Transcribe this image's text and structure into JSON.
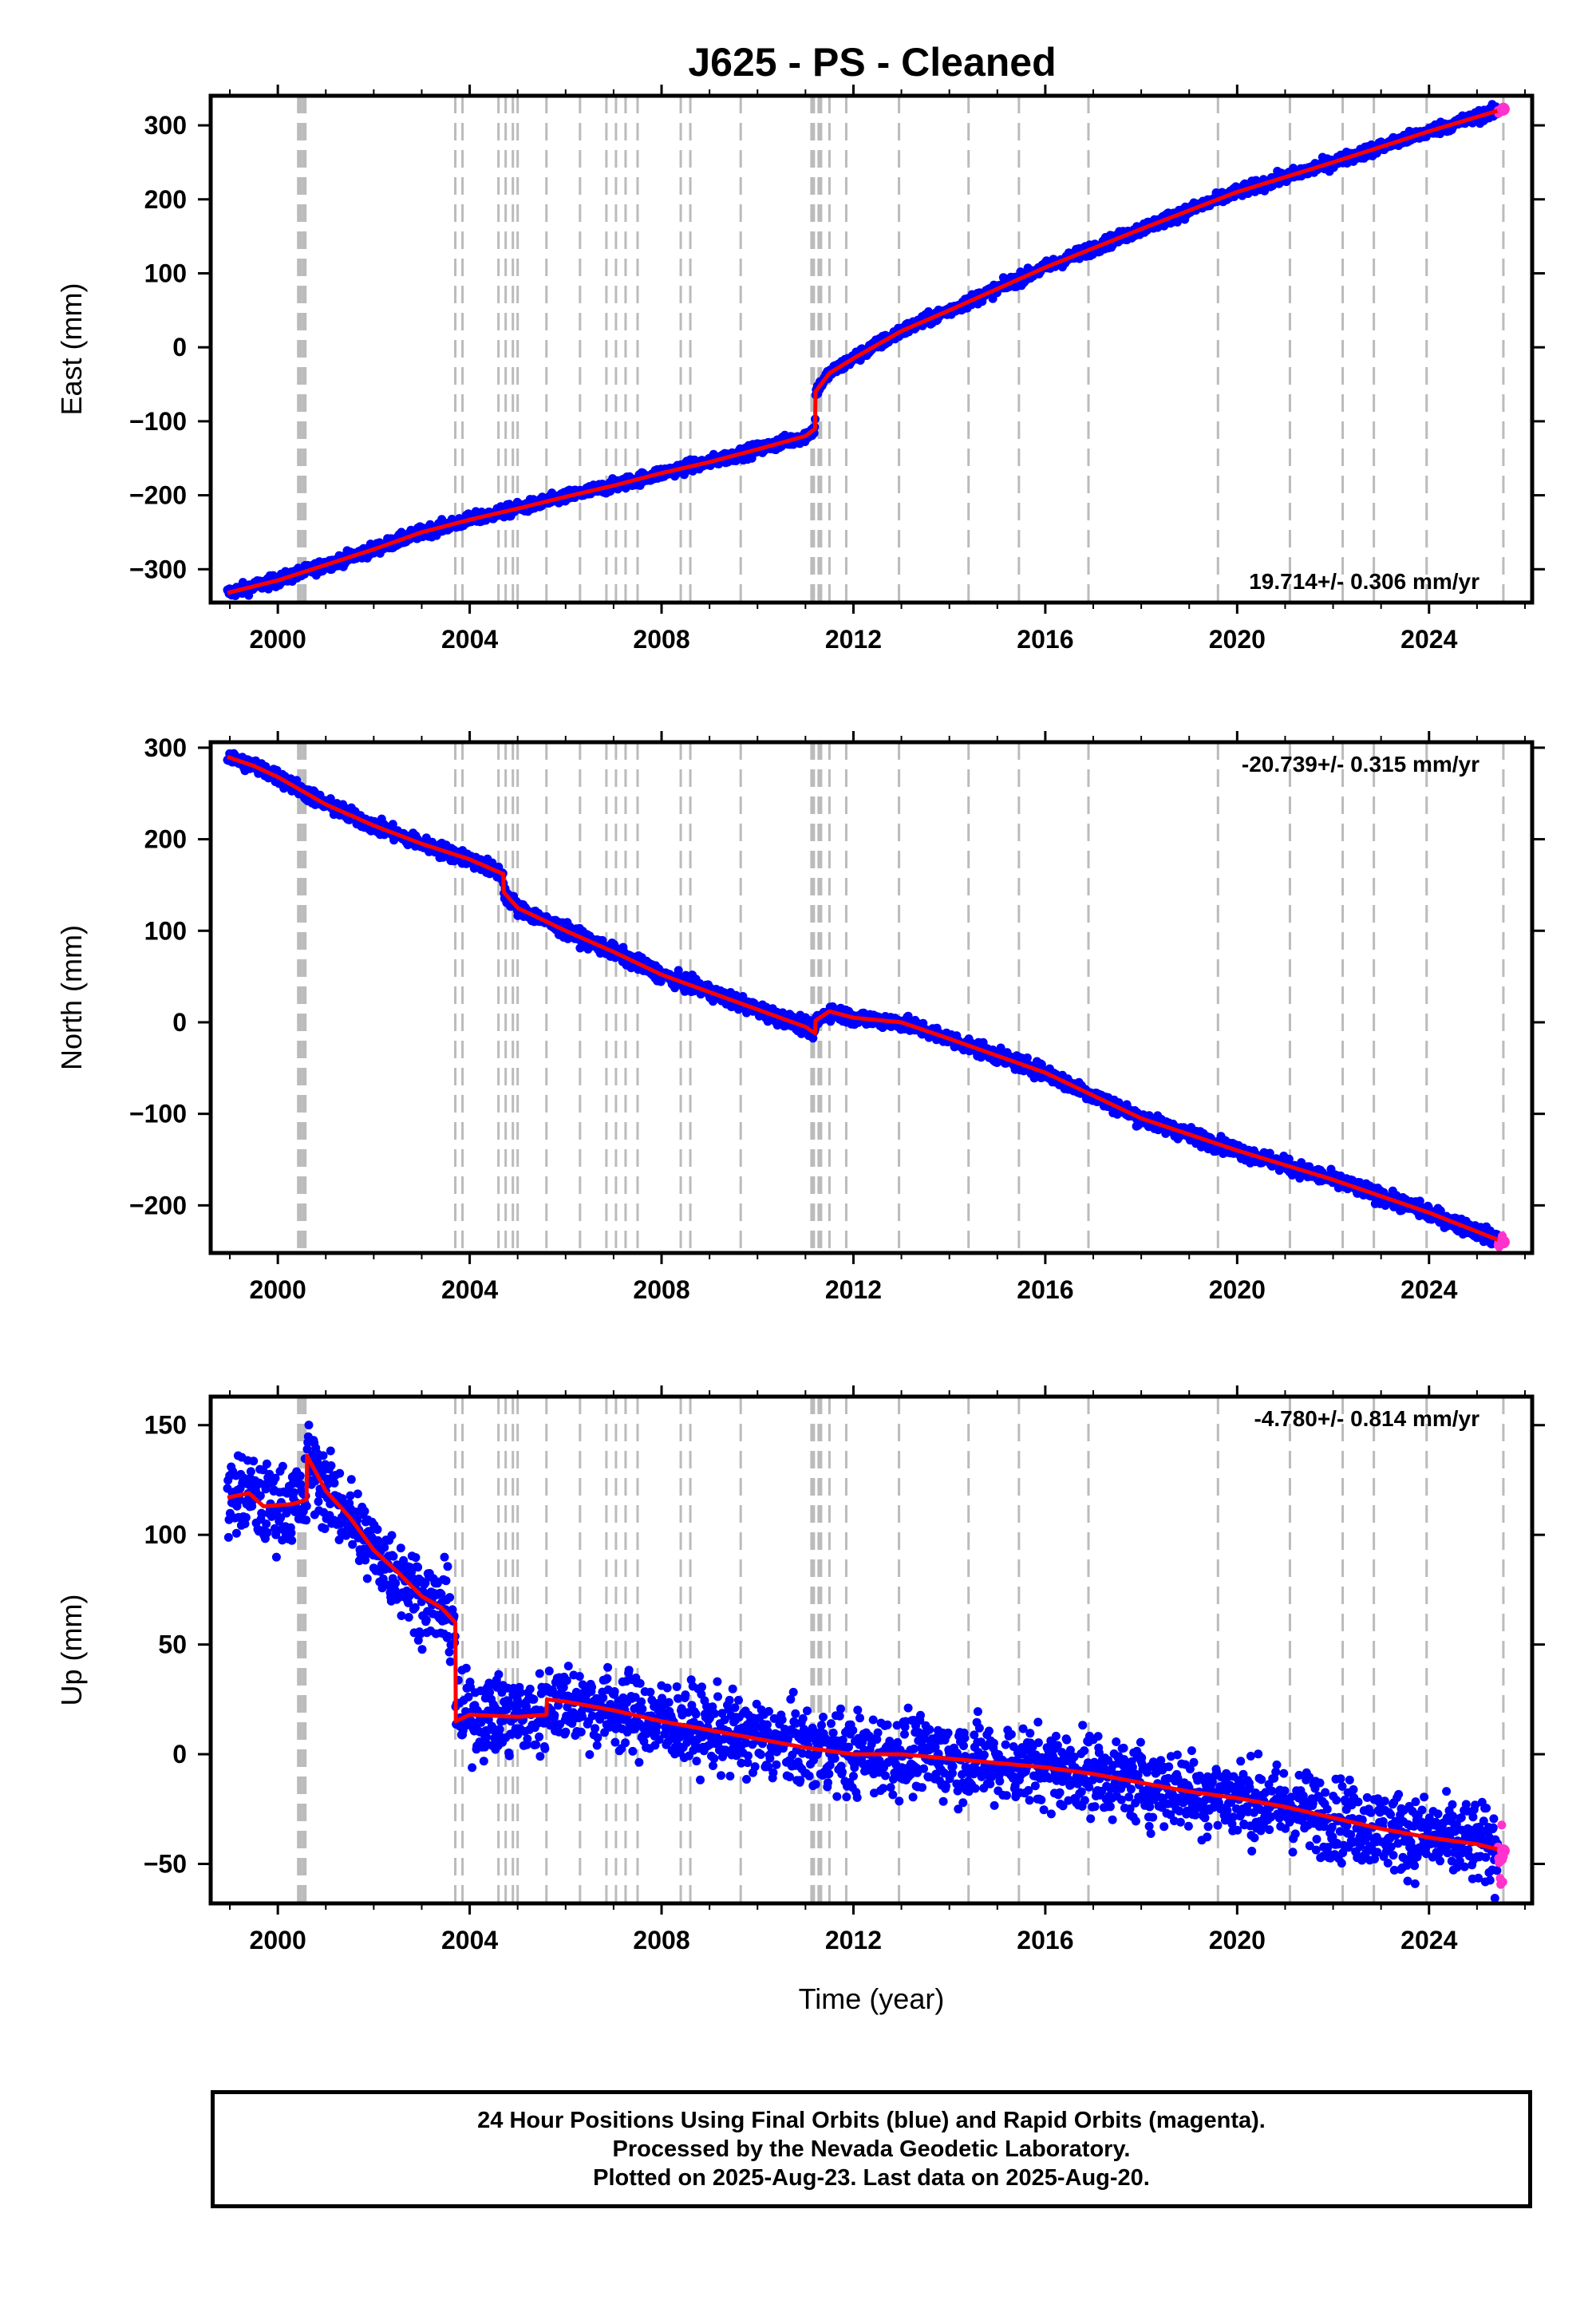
{
  "title": "J625  - PS - Cleaned",
  "footer": {
    "line1": "24 Hour Positions Using Final Orbits (blue) and Rapid Orbits (magenta).",
    "line2": "Processed by the Nevada Geodetic Laboratory.",
    "line3": "Plotted on 2025-Aug-23. Last data on 2025-Aug-20."
  },
  "colors": {
    "final_orbits": "#0000ff",
    "rapid_orbits": "#ff33cc",
    "model": "#ff0000",
    "event_lines": "#bbbbbb"
  },
  "chart_data": [
    {
      "type": "scatter",
      "name": "east",
      "ylabel": "East (mm)",
      "xlabel": "",
      "rate_text": "19.714+/- 0.306 mm/yr",
      "rate_position": "bottom-right",
      "xlim": [
        1998.6,
        2026.15
      ],
      "ylim": [
        -345,
        340
      ],
      "x_ticks": [
        2000,
        2004,
        2008,
        2012,
        2016,
        2020,
        2024
      ],
      "x_tick_labels": [
        "2000",
        "2004",
        "2008",
        "2012",
        "2016",
        "2020",
        "2024"
      ],
      "y_ticks": [
        -300,
        -200,
        -100,
        0,
        100,
        200,
        300
      ],
      "y_tick_labels": [
        "−300",
        "−200",
        "−100",
        "0",
        "100",
        "200",
        "300"
      ],
      "noise_mm": 4,
      "series": [
        {
          "name": "model",
          "x": [
            1998.95,
            2000.0,
            2002.0,
            2003.0,
            2004.0,
            2005.0,
            2006.0,
            2007.0,
            2008.0,
            2009.0,
            2010.0,
            2011.0,
            2011.2,
            2011.21,
            2011.5,
            2012.0,
            2013.0,
            2014.0,
            2016.0,
            2018.0,
            2020.0,
            2022.0,
            2024.0,
            2025.55
          ],
          "y": [
            -332,
            -315,
            -273,
            -250,
            -233,
            -218,
            -202,
            -187,
            -170,
            -155,
            -138,
            -120,
            -110,
            -60,
            -35,
            -15,
            22,
            50,
            108,
            160,
            210,
            250,
            292,
            322
          ]
        }
      ]
    },
    {
      "type": "scatter",
      "name": "north",
      "ylabel": "North (mm)",
      "xlabel": "",
      "rate_text": "-20.739+/- 0.315 mm/yr",
      "rate_position": "top-right",
      "xlim": [
        1998.6,
        2026.15
      ],
      "ylim": [
        -252,
        306
      ],
      "x_ticks": [
        2000,
        2004,
        2008,
        2012,
        2016,
        2020,
        2024
      ],
      "x_tick_labels": [
        "2000",
        "2004",
        "2008",
        "2012",
        "2016",
        "2020",
        "2024"
      ],
      "y_ticks": [
        -200,
        -100,
        0,
        100,
        200,
        300
      ],
      "y_tick_labels": [
        "−200",
        "−100",
        "0",
        "100",
        "200",
        "300"
      ],
      "noise_mm": 4,
      "series": [
        {
          "name": "model",
          "x": [
            1998.95,
            1999.5,
            2000.0,
            2001.0,
            2002.0,
            2003.0,
            2004.0,
            2004.7,
            2004.71,
            2005.0,
            2006.0,
            2007.0,
            2008.0,
            2009.0,
            2010.0,
            2011.0,
            2011.2,
            2011.21,
            2011.5,
            2012.0,
            2013.0,
            2014.0,
            2016.0,
            2018.0,
            2020.0,
            2022.0,
            2024.0,
            2025.55
          ],
          "y": [
            290,
            280,
            268,
            238,
            215,
            195,
            178,
            162,
            142,
            125,
            100,
            77,
            52,
            33,
            14,
            -5,
            -12,
            2,
            12,
            5,
            0,
            -18,
            -55,
            -105,
            -140,
            -172,
            -208,
            -240
          ]
        }
      ]
    },
    {
      "type": "scatter",
      "name": "up",
      "ylabel": "Up (mm)",
      "xlabel": "Time (year)",
      "rate_text": "-4.780+/- 0.814 mm/yr",
      "rate_position": "top-right",
      "xlim": [
        1998.6,
        2026.15
      ],
      "ylim": [
        -68,
        163
      ],
      "x_ticks": [
        2000,
        2004,
        2008,
        2012,
        2016,
        2020,
        2024
      ],
      "x_tick_labels": [
        "2000",
        "2004",
        "2008",
        "2012",
        "2016",
        "2020",
        "2024"
      ],
      "y_ticks": [
        -50,
        0,
        50,
        100,
        150
      ],
      "y_tick_labels": [
        "−50",
        "0",
        "50",
        "100",
        "150"
      ],
      "noise_mm": 9,
      "series": [
        {
          "name": "model",
          "x": [
            1998.95,
            1999.4,
            1999.7,
            2000.3,
            2000.6,
            2000.61,
            2001.0,
            2001.5,
            2002.0,
            2002.5,
            2003.0,
            2003.4,
            2003.7,
            2003.71,
            2004.0,
            2005.0,
            2005.6,
            2005.61,
            2006.0,
            2007.0,
            2008.0,
            2009.0,
            2010.0,
            2011.0,
            2012.0,
            2013.0,
            2014.0,
            2015.0,
            2016.0,
            2017.0,
            2018.0,
            2019.0,
            2020.0,
            2021.0,
            2022.0,
            2023.0,
            2024.0,
            2025.0,
            2025.55
          ],
          "y": [
            117,
            119,
            113,
            114,
            116,
            136,
            120,
            108,
            93,
            83,
            72,
            67,
            60,
            15,
            18,
            17,
            18,
            25,
            24,
            20,
            15,
            11,
            7,
            3,
            0,
            0,
            -2,
            -4,
            -6,
            -9,
            -13,
            -17,
            -20,
            -24,
            -29,
            -34,
            -38,
            -41,
            -44
          ]
        }
      ]
    }
  ],
  "event_lines": {
    "dashed": [
      2003.7,
      2003.85,
      2004.6,
      2004.75,
      2004.9,
      2005.0,
      2005.6,
      2006.3,
      2006.85,
      2007.05,
      2007.25,
      2007.5,
      2008.4,
      2008.6,
      2009.65,
      2011.5,
      2011.85,
      2012.95,
      2014.4,
      2015.45,
      2016.9,
      2019.6,
      2021.1,
      2022.2,
      2022.85,
      2023.95,
      2025.55
    ],
    "heavy": [
      2000.45,
      2000.55,
      2011.15,
      2011.3
    ]
  }
}
